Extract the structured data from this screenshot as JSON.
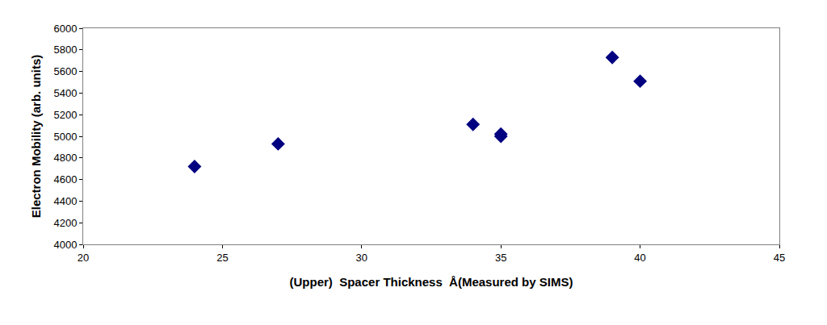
{
  "chart_data": {
    "type": "scatter",
    "x_label": "(Upper)  Spacer Thickness  Å(Measured by SIMS)",
    "y_label": "Electron Mobility (arb. units)",
    "x": [
      24,
      27,
      34,
      35,
      35,
      39,
      40
    ],
    "values": [
      4720,
      4930,
      5110,
      5020,
      5000,
      5730,
      5510
    ],
    "color": "#000080",
    "marker": "diamond",
    "xlim": [
      20,
      45
    ],
    "xticks": [
      20,
      25,
      30,
      35,
      40,
      45
    ],
    "ylim": [
      4000,
      6000
    ],
    "yticks": [
      4000,
      4200,
      4400,
      4600,
      4800,
      5000,
      5200,
      5400,
      5600,
      5800,
      6000
    ],
    "grid": false
  }
}
